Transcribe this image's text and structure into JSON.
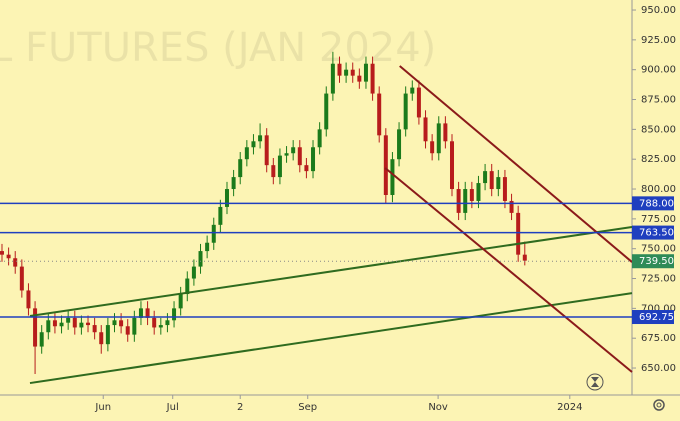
{
  "chart_data": {
    "type": "candlestick",
    "watermark": "L FUTURES (JAN 2024)",
    "up_color": "#1b7a1b",
    "down_color": "#b71c1c",
    "open": [
      748,
      745,
      742,
      735,
      715,
      700,
      668,
      680,
      690,
      685,
      688,
      692,
      684,
      688,
      686,
      680,
      670,
      686,
      690,
      685,
      678,
      692,
      700,
      692,
      684,
      686,
      690,
      700,
      712,
      725,
      735,
      748,
      755,
      770,
      785,
      800,
      810,
      825,
      835,
      840,
      845,
      820,
      810,
      828,
      830,
      835,
      820,
      815,
      835,
      850,
      880,
      905,
      895,
      900,
      895,
      890,
      905,
      880,
      845,
      795,
      825,
      850,
      880,
      885,
      860,
      840,
      830,
      855,
      840,
      800,
      780,
      800,
      790,
      805,
      815,
      800,
      810,
      790,
      780,
      745
    ],
    "high": [
      754,
      751,
      748,
      741,
      721,
      706,
      686,
      696,
      696,
      694,
      698,
      698,
      694,
      694,
      692,
      686,
      692,
      696,
      696,
      691,
      698,
      706,
      706,
      698,
      692,
      696,
      706,
      718,
      731,
      741,
      754,
      761,
      776,
      791,
      806,
      816,
      831,
      841,
      846,
      855,
      851,
      826,
      834,
      836,
      841,
      841,
      826,
      841,
      856,
      886,
      915,
      911,
      906,
      906,
      901,
      911,
      911,
      886,
      851,
      831,
      856,
      886,
      891,
      891,
      866,
      846,
      861,
      861,
      846,
      806,
      806,
      806,
      811,
      821,
      821,
      816,
      816,
      796,
      786,
      756
    ],
    "low": [
      739,
      736,
      729,
      709,
      694,
      645,
      662,
      674,
      679,
      679,
      682,
      678,
      678,
      680,
      674,
      662,
      664,
      680,
      679,
      672,
      672,
      686,
      686,
      678,
      678,
      680,
      684,
      694,
      706,
      719,
      729,
      742,
      749,
      764,
      779,
      794,
      804,
      819,
      829,
      834,
      814,
      804,
      804,
      822,
      824,
      814,
      809,
      809,
      829,
      844,
      874,
      889,
      889,
      889,
      884,
      884,
      874,
      839,
      788,
      789,
      819,
      844,
      874,
      854,
      834,
      824,
      824,
      834,
      794,
      774,
      774,
      784,
      784,
      799,
      794,
      794,
      784,
      774,
      739,
      736
    ],
    "close": [
      745,
      742,
      735,
      715,
      700,
      668,
      680,
      690,
      685,
      688,
      692,
      684,
      688,
      686,
      680,
      670,
      686,
      690,
      685,
      678,
      692,
      700,
      692,
      684,
      686,
      690,
      700,
      712,
      725,
      735,
      748,
      755,
      770,
      785,
      800,
      810,
      825,
      835,
      840,
      845,
      820,
      810,
      828,
      830,
      835,
      820,
      815,
      835,
      850,
      880,
      905,
      895,
      900,
      895,
      890,
      905,
      880,
      845,
      795,
      825,
      850,
      880,
      885,
      860,
      840,
      830,
      855,
      840,
      800,
      780,
      800,
      790,
      805,
      815,
      800,
      810,
      790,
      780,
      745,
      740
    ],
    "xlim": [
      -0.3,
      95.2
    ],
    "ylim": [
      627.4,
      958.4
    ],
    "xticks": [
      {
        "value": 15.3,
        "label": "Jun"
      },
      {
        "value": 25.8,
        "label": "Jul"
      },
      {
        "value": 36,
        "label": "2"
      },
      {
        "value": 46.2,
        "label": "Sep"
      },
      {
        "value": 65.9,
        "label": "Nov"
      },
      {
        "value": 85.8,
        "label": "2024"
      }
    ],
    "yticks": [
      {
        "value": 650,
        "label": "650.00"
      },
      {
        "value": 675,
        "label": "675.00"
      },
      {
        "value": 700,
        "label": "700.00"
      },
      {
        "value": 725,
        "label": "725.00"
      },
      {
        "value": 750,
        "label": "750.00"
      },
      {
        "value": 775,
        "label": "775.00"
      },
      {
        "value": 800,
        "label": "800.00"
      },
      {
        "value": 825,
        "label": "825.00"
      },
      {
        "value": 850,
        "label": "850.00"
      },
      {
        "value": 875,
        "label": "875.00"
      },
      {
        "value": 900,
        "label": "900.00"
      },
      {
        "value": 925,
        "label": "925.00"
      },
      {
        "value": 950,
        "label": "950.00"
      }
    ],
    "hlines": [
      {
        "value": 788,
        "label": "788.00",
        "color": "#1f3fbf"
      },
      {
        "value": 763.5,
        "label": "763.50",
        "color": "#1f3fbf"
      },
      {
        "value": 692.75,
        "label": "692.75",
        "color": "#1f3fbf"
      }
    ],
    "last_price": {
      "value": 739.5,
      "label": "739.50",
      "color": "#2e8b57"
    },
    "trendlines": [
      {
        "x": [
          4.23,
          95.2
        ],
        "y": [
          637.4,
          712.8
        ],
        "color": "#2f6b1f"
      },
      {
        "x": [
          4.23,
          95.2
        ],
        "y": [
          693.6,
          768.2
        ],
        "color": "#2f6b1f"
      },
      {
        "x": [
          60.1,
          95.2
        ],
        "y": [
          903.1,
          738.8
        ],
        "color": "#8b1a1a"
      },
      {
        "x": [
          57.9,
          95.2
        ],
        "y": [
          817.6,
          646.7
        ],
        "color": "#8b1a1a"
      }
    ]
  }
}
